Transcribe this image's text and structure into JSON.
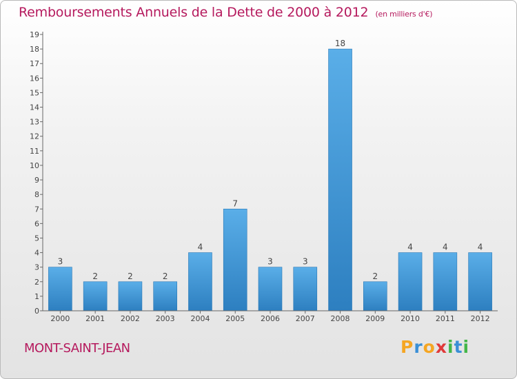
{
  "header": {
    "title": "Remboursements Annuels de la Dette de 2000 à 2012",
    "subtitle": "(en milliers d'€)"
  },
  "footer": {
    "city": "MONT-SAINT-JEAN",
    "logo_parts": [
      {
        "text": "P",
        "color": "#f5a623"
      },
      {
        "text": "r",
        "color": "#3a8fd6"
      },
      {
        "text": "o",
        "color": "#f5a623"
      },
      {
        "text": "x",
        "color": "#e03a3a"
      },
      {
        "text": "i",
        "color": "#43b649"
      },
      {
        "text": "t",
        "color": "#3a8fd6"
      },
      {
        "text": "i",
        "color": "#43b649"
      }
    ]
  },
  "colors": {
    "bar_top": "#5aaee8",
    "bar_bottom": "#2d7fc0",
    "title": "#b5195d"
  },
  "chart_data": {
    "type": "bar",
    "title": "Remboursements Annuels de la Dette de 2000 à 2012",
    "subtitle": "(en milliers d'€)",
    "xlabel": "",
    "ylabel": "",
    "categories": [
      "2000",
      "2001",
      "2002",
      "2003",
      "2004",
      "2005",
      "2006",
      "2007",
      "2008",
      "2009",
      "2010",
      "2011",
      "2012"
    ],
    "values": [
      3,
      2,
      2,
      2,
      4,
      7,
      3,
      3,
      18,
      2,
      4,
      4,
      4
    ],
    "ylim": [
      0,
      19
    ],
    "yticks": [
      0,
      1,
      2,
      3,
      4,
      5,
      6,
      7,
      8,
      9,
      10,
      11,
      12,
      13,
      14,
      15,
      16,
      17,
      18,
      19
    ],
    "grid": false,
    "legend": "none"
  }
}
